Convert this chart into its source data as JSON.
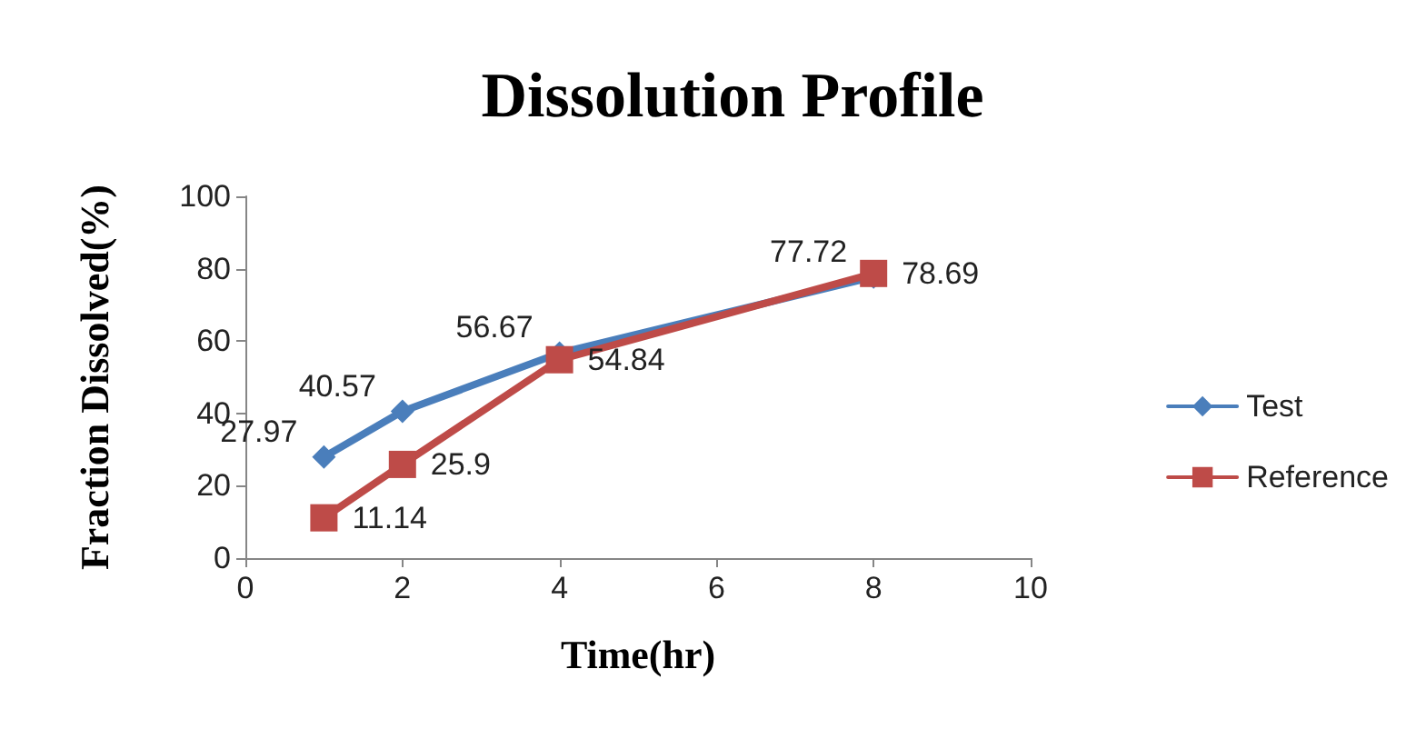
{
  "chart_data": {
    "type": "line",
    "title": "Dissolution Profile",
    "xlabel": "Time(hr)",
    "ylabel": "Fraction Dissolved(%)",
    "x": [
      1,
      2,
      4,
      8
    ],
    "series": [
      {
        "name": "Test",
        "color": "#4a7ebb",
        "marker": "diamond",
        "values": [
          27.97,
          40.57,
          56.67,
          77.72
        ]
      },
      {
        "name": "Reference",
        "color": "#be4b48",
        "marker": "square",
        "values": [
          11.14,
          25.9,
          54.84,
          78.69
        ]
      }
    ],
    "xlim": [
      0,
      10
    ],
    "xticks": [
      0,
      2,
      4,
      6,
      8,
      10
    ],
    "ylim": [
      0,
      100
    ],
    "yticks": [
      0,
      20,
      40,
      60,
      80,
      100
    ],
    "grid": false,
    "legend": "right",
    "data_labels": true,
    "line_style": "solid"
  }
}
